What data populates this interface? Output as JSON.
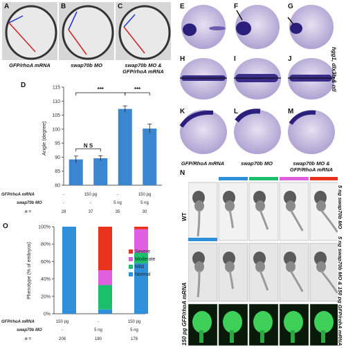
{
  "panels_top": {
    "labels": [
      "A",
      "B",
      "C"
    ],
    "captions": [
      "GFP/rhoA mRNA",
      "swap70b MO",
      "swap70b MO & GFP/rhoA mRNA"
    ]
  },
  "panels_ish": {
    "labels": [
      "E",
      "F",
      "G",
      "H",
      "I",
      "J",
      "K",
      "L",
      "M"
    ],
    "captions": [
      "GFP/RhoA mRNA",
      "swap70b MO",
      "swap70b MO & GFP/RhoA mRNA"
    ],
    "side_label": "hgg1, dlx3b & ntl"
  },
  "panel_D": {
    "label": "D",
    "rows": [
      {
        "label": "GFP/rhoA mRNA",
        "values": [
          "-",
          "150 pg",
          "-",
          "150 pg"
        ]
      },
      {
        "label": "swap70b MO",
        "values": [
          "-",
          "-",
          "5 ng",
          "5 ng"
        ]
      },
      {
        "label": "n =",
        "values": [
          "28",
          "37",
          "35",
          "30"
        ]
      }
    ],
    "significance": [
      "N S",
      "***",
      "***"
    ]
  },
  "panel_O": {
    "label": "O",
    "rows": [
      {
        "label": "GFP/rhoA mRNA",
        "values": [
          "150 pg",
          "-",
          "150 pg"
        ]
      },
      {
        "label": "swap70b MO",
        "values": [
          "-",
          "5 ng",
          "5 ng"
        ]
      },
      {
        "label": "n =",
        "values": [
          "208",
          "180",
          "178"
        ]
      }
    ]
  },
  "panel_N": {
    "label": "N",
    "row_labels": [
      "WT",
      "150 pg GFP/rhoA mRNA"
    ],
    "right_labels": [
      "5 ng swap70b MO",
      "5 ng swap70b MO & 150 pg GFP/rohA mRNA"
    ],
    "colors": {
      "normal": "#2f8fd8",
      "mild": "#1bbf6b",
      "moderate": "#e05ee0",
      "severe": "#e8321e"
    }
  },
  "chart_data": [
    {
      "type": "bar",
      "categories": [
        "1",
        "2",
        "3",
        "4"
      ],
      "values": [
        89.2,
        89.6,
        107.2,
        100.2
      ],
      "errors": [
        1.2,
        0.9,
        1.1,
        1.6
      ],
      "ylabel": "Angle (degree)",
      "ylim": [
        80,
        115
      ],
      "yticks": [
        80,
        85,
        90,
        95,
        100,
        105,
        110,
        115
      ],
      "color": "#3a86d0"
    },
    {
      "type": "bar",
      "stacked": true,
      "categories": [
        "1",
        "2",
        "3"
      ],
      "ylabel": "Phenotype (% of embryos)",
      "ylim": [
        0,
        100
      ],
      "yticks": [
        "0%",
        "20%",
        "40%",
        "60%",
        "80%",
        "100%"
      ],
      "series": [
        {
          "name": "Normal",
          "color": "#2f8fd8",
          "values": [
            100,
            5,
            58
          ]
        },
        {
          "name": "Mild",
          "color": "#1bbf6b",
          "values": [
            0,
            28,
            12
          ]
        },
        {
          "name": "Moderate",
          "color": "#e05ee0",
          "values": [
            0,
            17,
            27
          ]
        },
        {
          "name": "Severe",
          "color": "#e8321e",
          "values": [
            0,
            50,
            3
          ]
        }
      ],
      "legend": "right"
    }
  ]
}
